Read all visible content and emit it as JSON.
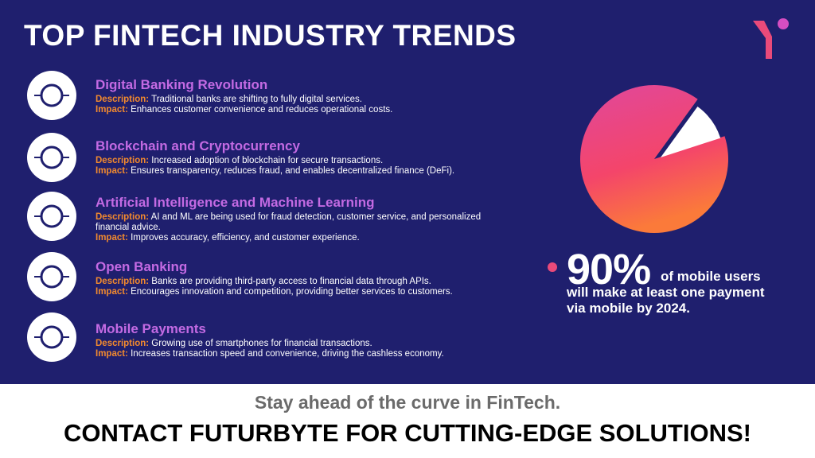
{
  "title": "TOP FINTECH INDUSTRY TRENDS",
  "labels": {
    "description": "Description:",
    "impact": "Impact:"
  },
  "trends": [
    {
      "title": "Digital Banking Revolution",
      "description": "Traditional banks are shifting to fully digital services.",
      "impact": "Enhances customer convenience and reduces operational costs."
    },
    {
      "title": "Blockchain and Cryptocurrency",
      "description": "Increased adoption of blockchain for secure transactions.",
      "impact": "Ensures transparency, reduces fraud, and enables decentralized finance (DeFi)."
    },
    {
      "title": "Artificial Intelligence and Machine Learning",
      "description": "AI and ML are being used for fraud detection, customer service, and personalized financial advice.",
      "impact": "Improves accuracy, efficiency, and customer experience."
    },
    {
      "title": "Open Banking",
      "description": "Banks are providing third-party access to financial data through APIs.",
      "impact": "Encourages innovation and competition, providing better services to customers."
    },
    {
      "title": "Mobile Payments",
      "description": "Growing use of smartphones for financial transactions.",
      "impact": "Increases transaction speed and convenience, driving the cashless economy."
    }
  ],
  "stat": {
    "value": 90,
    "value_label": "90%",
    "text": "of mobile users will make at least one payment via mobile by 2024."
  },
  "footer": {
    "subtitle": "Stay ahead of the curve in FinTech.",
    "cta": "CONTACT FUTURBYTE FOR CUTTING-EDGE SOLUTIONS!"
  }
}
